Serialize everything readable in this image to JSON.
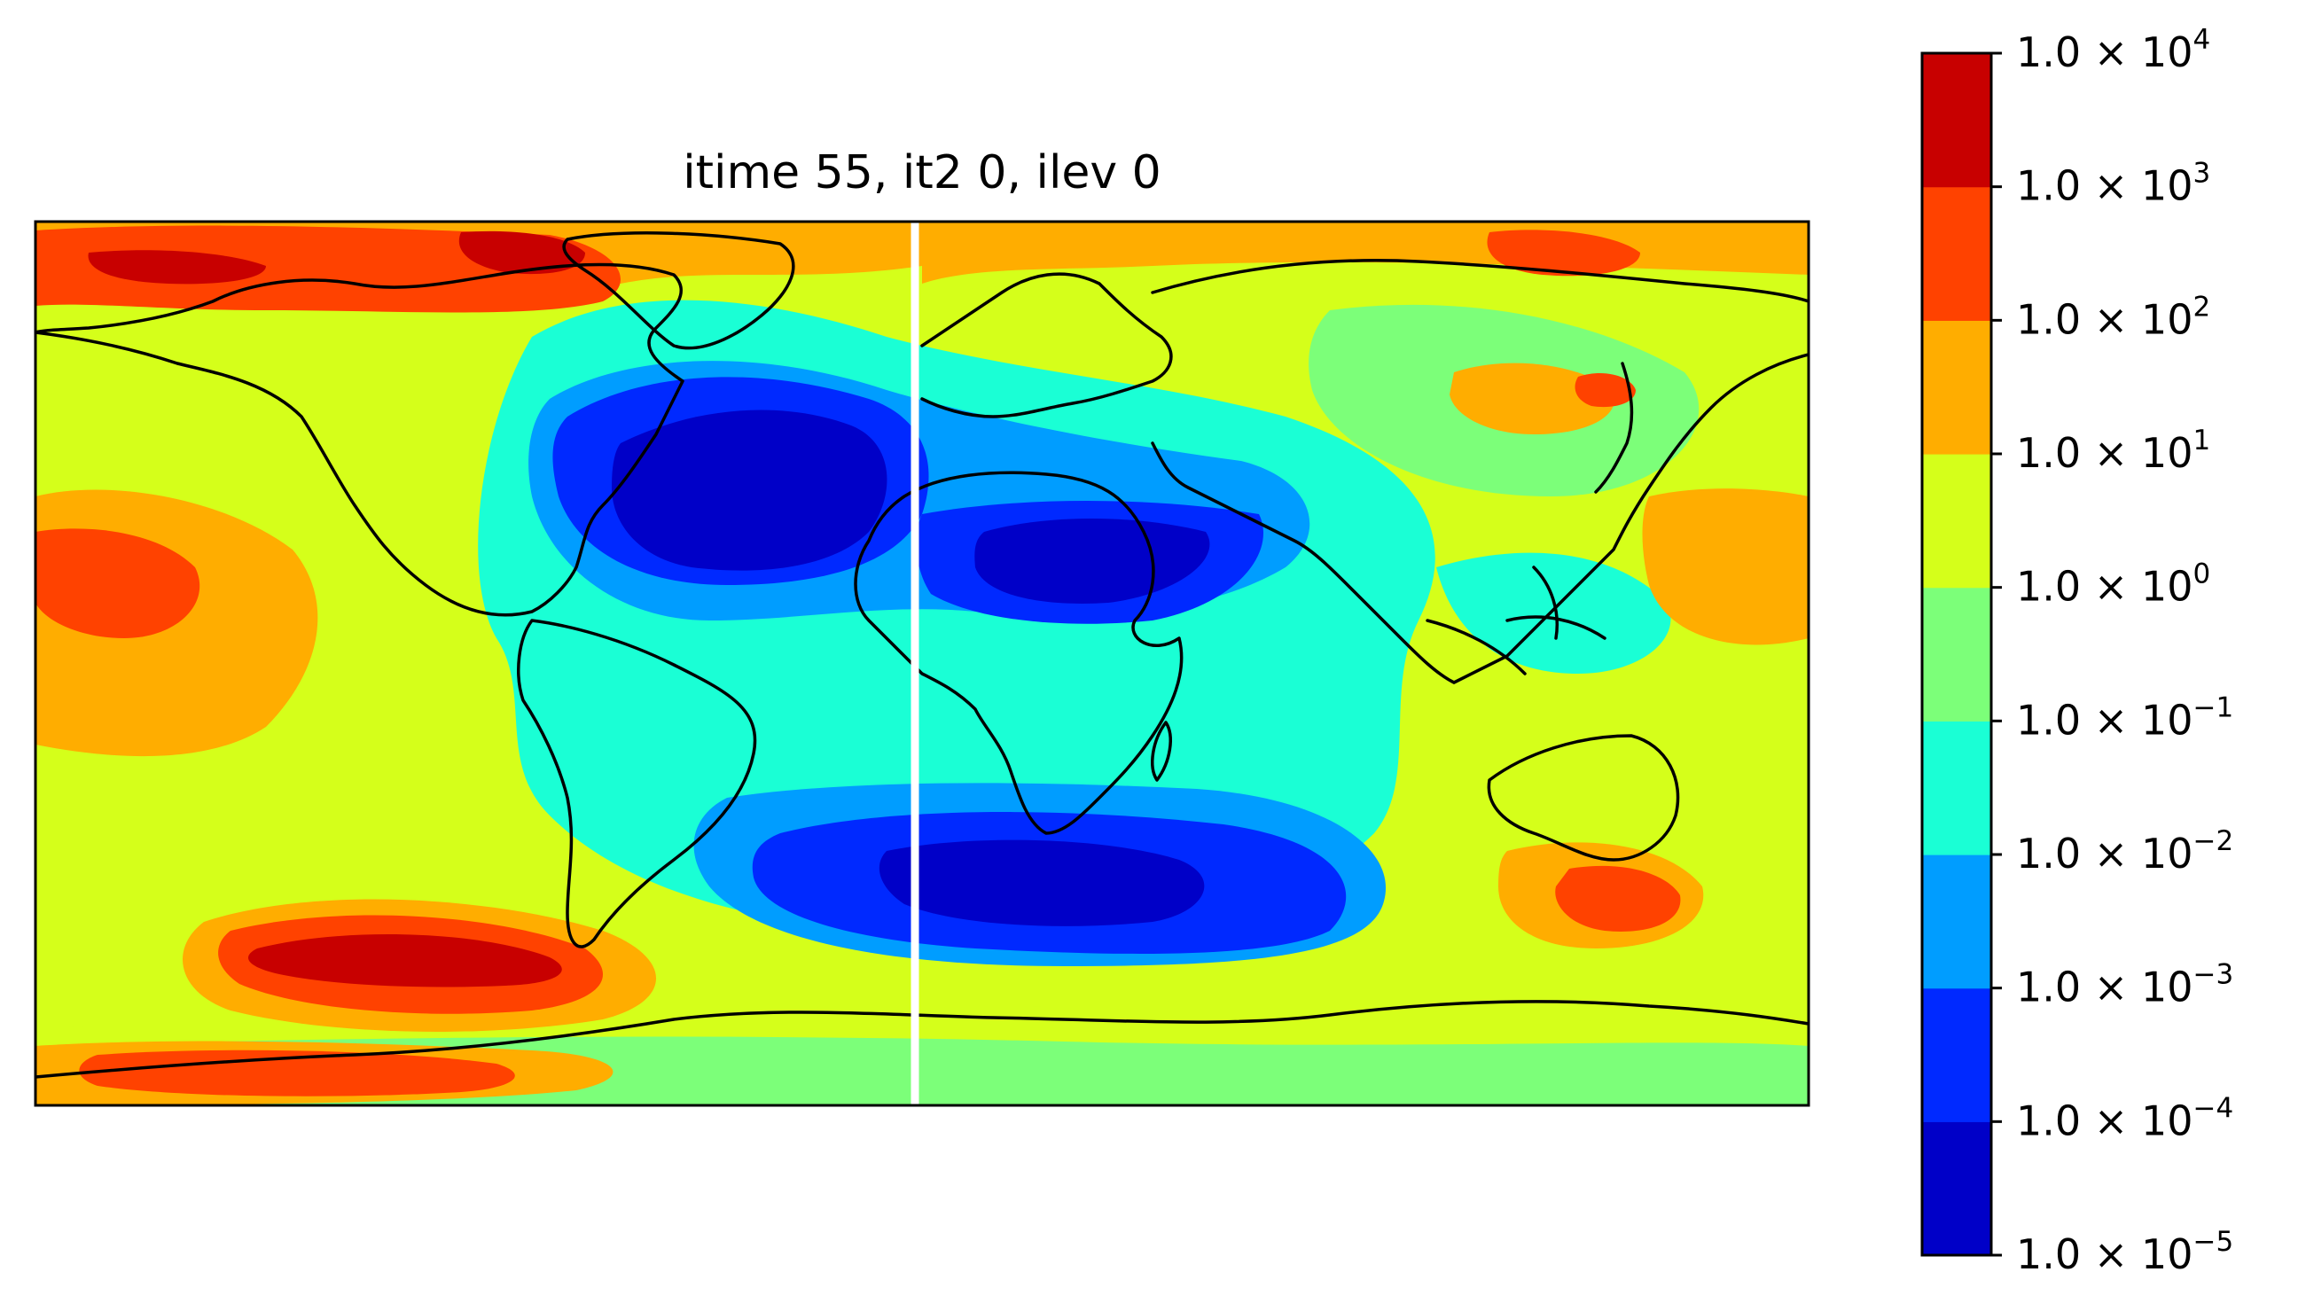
{
  "chart_data": {
    "type": "heatmap",
    "subtype": "filled-contour world map (equirectangular)",
    "title": "itime 55, it2 0, ilev 0",
    "xlabel": "",
    "ylabel": "",
    "map": {
      "projection": "PlateCarree",
      "coastlines": true,
      "gridlines": false,
      "axis_ticks": false,
      "longitude_range": [
        -180,
        180
      ],
      "latitude_range": [
        -90,
        90
      ],
      "seam_line": {
        "color": "#ffffff",
        "note": "white vertical seam line"
      }
    },
    "colorbar": {
      "orientation": "vertical",
      "position": "right",
      "scale": "log",
      "range": [
        1e-05,
        10000.0
      ],
      "levels": [
        1e-05,
        0.0001,
        0.001,
        0.01,
        0.1,
        1.0,
        10.0,
        100.0,
        1000.0,
        10000.0
      ],
      "tick_labels": [
        {
          "mant": "1.0 × 10",
          "exp": "−5"
        },
        {
          "mant": "1.0 × 10",
          "exp": "−4"
        },
        {
          "mant": "1.0 × 10",
          "exp": "−3"
        },
        {
          "mant": "1.0 × 10",
          "exp": "−2"
        },
        {
          "mant": "1.0 × 10",
          "exp": "−1"
        },
        {
          "mant": "1.0 × 10",
          "exp": "0"
        },
        {
          "mant": "1.0 × 10",
          "exp": "1"
        },
        {
          "mant": "1.0 × 10",
          "exp": "2"
        },
        {
          "mant": "1.0 × 10",
          "exp": "3"
        },
        {
          "mant": "1.0 × 10",
          "exp": "4"
        }
      ],
      "band_colors": [
        "#0000c8",
        "#0029ff",
        "#009dff",
        "#1affd5",
        "#7cff79",
        "#d5ff1a",
        "#ffad00",
        "#ff4200",
        "#c80000"
      ]
    },
    "colormap": "jet"
  }
}
